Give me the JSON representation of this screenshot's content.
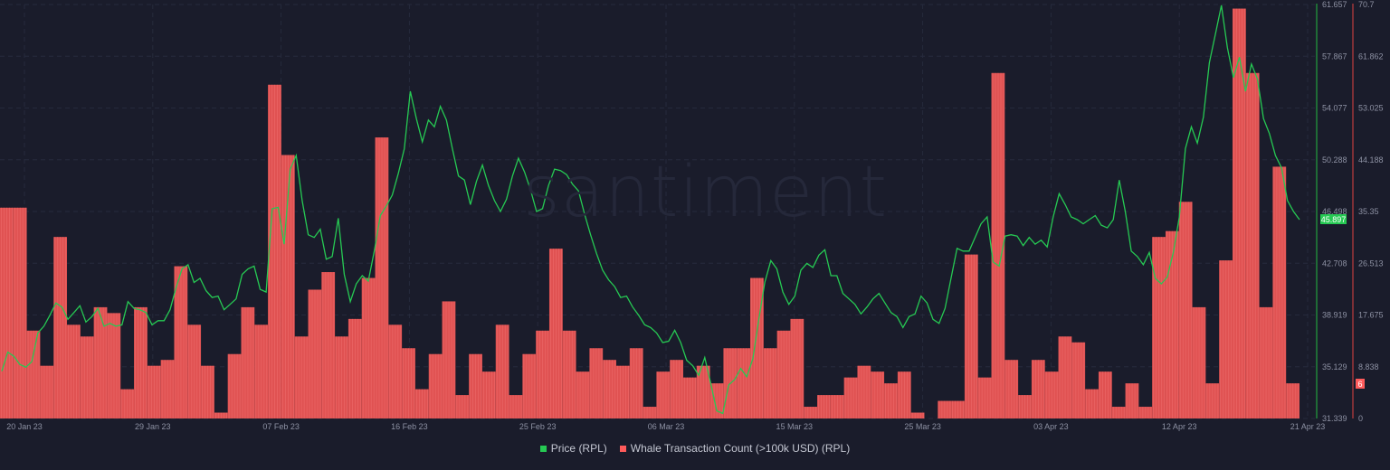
{
  "watermark": "santiment",
  "legend": {
    "price": {
      "label": "Price (RPL)",
      "color": "#26c953"
    },
    "whale": {
      "label": "Whale Transaction Count (>100k USD) (RPL)",
      "color": "#ff5b5b"
    }
  },
  "current_values": {
    "price": "45.897",
    "whale": "6"
  },
  "chart_data": {
    "type": "bar+line",
    "title": "",
    "xlabel": "",
    "x_ticks": [
      "20 Jan 23",
      "29 Jan 23",
      "07 Feb 23",
      "16 Feb 23",
      "25 Feb 23",
      "06 Mar 23",
      "15 Mar 23",
      "25 Mar 23",
      "03 Apr 23",
      "12 Apr 23",
      "21 Apr 23"
    ],
    "y_left": {
      "label": "Price (RPL)",
      "ticks": [
        "61.657",
        "57.867",
        "54.077",
        "50.288",
        "46.498",
        "42.708",
        "38.919",
        "35.129",
        "31.339"
      ],
      "range": [
        31.339,
        61.657
      ]
    },
    "y_right": {
      "label": "Whale Transaction Count (>100k USD) (RPL)",
      "ticks": [
        "70.7",
        "61.862",
        "53.025",
        "44.188",
        "35.35",
        "26.513",
        "17.675",
        "8.838",
        "0"
      ],
      "range": [
        0,
        70.7
      ]
    },
    "grid": true,
    "legend_position": "bottom",
    "series": [
      {
        "name": "Whale Transaction Count (>100k USD) (RPL)",
        "type": "bar",
        "color": "#e05252",
        "values": [
          36,
          36,
          15,
          9,
          31,
          16,
          14,
          19,
          18,
          5,
          19,
          9,
          10,
          26,
          16,
          9,
          1,
          11,
          19,
          16,
          57,
          45,
          14,
          22,
          25,
          14,
          17,
          24,
          48,
          16,
          12,
          5,
          11,
          20,
          4,
          11,
          8,
          16,
          4,
          11,
          15,
          29,
          15,
          8,
          12,
          10,
          9,
          12,
          2,
          8,
          10,
          7,
          9,
          6,
          12,
          12,
          24,
          12,
          15,
          17,
          2,
          4,
          4,
          7,
          9,
          8,
          6,
          8,
          1,
          0,
          3,
          3,
          28,
          7,
          59,
          10,
          4,
          10,
          8,
          14,
          13,
          5,
          8,
          2,
          6,
          2,
          31,
          32,
          37,
          19,
          6,
          27,
          70,
          59,
          19,
          43,
          6
        ]
      },
      {
        "name": "Price (RPL)",
        "type": "line",
        "color": "#26c953",
        "values": [
          34.8,
          36.2,
          35.9,
          35.3,
          35.1,
          35.5,
          37.6,
          38.1,
          38.9,
          39.8,
          39.5,
          38.6,
          39.1,
          39.6,
          38.4,
          38.8,
          39.4,
          38.1,
          38.3,
          38.1,
          38.2,
          39.9,
          39.4,
          39.3,
          39.1,
          38.2,
          38.5,
          38.5,
          39.3,
          40.9,
          42.3,
          42.6,
          41.3,
          41.6,
          40.7,
          40.2,
          40.3,
          39.3,
          39.7,
          40.1,
          41.9,
          42.3,
          42.5,
          40.8,
          40.6,
          46.7,
          46.8,
          44.1,
          49.6,
          50.6,
          47.3,
          44.8,
          44.6,
          45.2,
          43.0,
          43.2,
          46.0,
          41.9,
          39.9,
          41.2,
          41.8,
          41.4,
          43.6,
          46.2,
          46.9,
          47.7,
          49.3,
          51.1,
          55.3,
          53.3,
          51.6,
          53.2,
          52.7,
          54.2,
          53.2,
          51.1,
          49.1,
          48.8,
          47.0,
          48.7,
          49.9,
          48.4,
          47.3,
          46.5,
          47.4,
          49.1,
          50.4,
          49.4,
          48.1,
          46.5,
          46.7,
          48.4,
          49.6,
          49.5,
          49.2,
          48.5,
          48.0,
          46.3,
          44.8,
          43.4,
          42.2,
          41.5,
          41.0,
          40.2,
          40.3,
          39.5,
          38.9,
          38.2,
          38.0,
          37.6,
          36.9,
          37.0,
          37.8,
          36.9,
          35.6,
          35.2,
          34.5,
          35.8,
          33.9,
          31.9,
          31.7,
          33.8,
          34.2,
          35.0,
          34.4,
          35.7,
          38.6,
          41.3,
          42.9,
          42.3,
          40.6,
          39.7,
          40.3,
          42.2,
          42.7,
          42.4,
          43.3,
          43.7,
          41.8,
          41.8,
          40.5,
          40.1,
          39.7,
          39.0,
          39.5,
          40.1,
          40.5,
          39.8,
          39.1,
          38.8,
          38.0,
          38.8,
          39.0,
          40.3,
          39.8,
          38.6,
          38.3,
          39.4,
          41.6,
          43.8,
          43.6,
          43.6,
          44.6,
          45.6,
          46.1,
          42.8,
          42.5,
          44.7,
          44.8,
          44.7,
          44.0,
          44.6,
          44.1,
          44.4,
          43.9,
          46.1,
          47.8,
          47.0,
          46.1,
          45.9,
          45.6,
          45.9,
          46.2,
          45.5,
          45.3,
          45.9,
          48.8,
          46.5,
          43.6,
          43.2,
          42.6,
          43.5,
          41.6,
          41.2,
          41.7,
          43.5,
          46.1,
          51.1,
          52.7,
          51.5,
          53.4,
          57.4,
          59.5,
          61.6,
          58.5,
          56.3,
          57.8,
          55.3,
          57.3,
          56.2,
          53.3,
          52.2,
          50.6,
          49.7,
          47.3,
          46.5,
          45.9
        ]
      }
    ]
  }
}
